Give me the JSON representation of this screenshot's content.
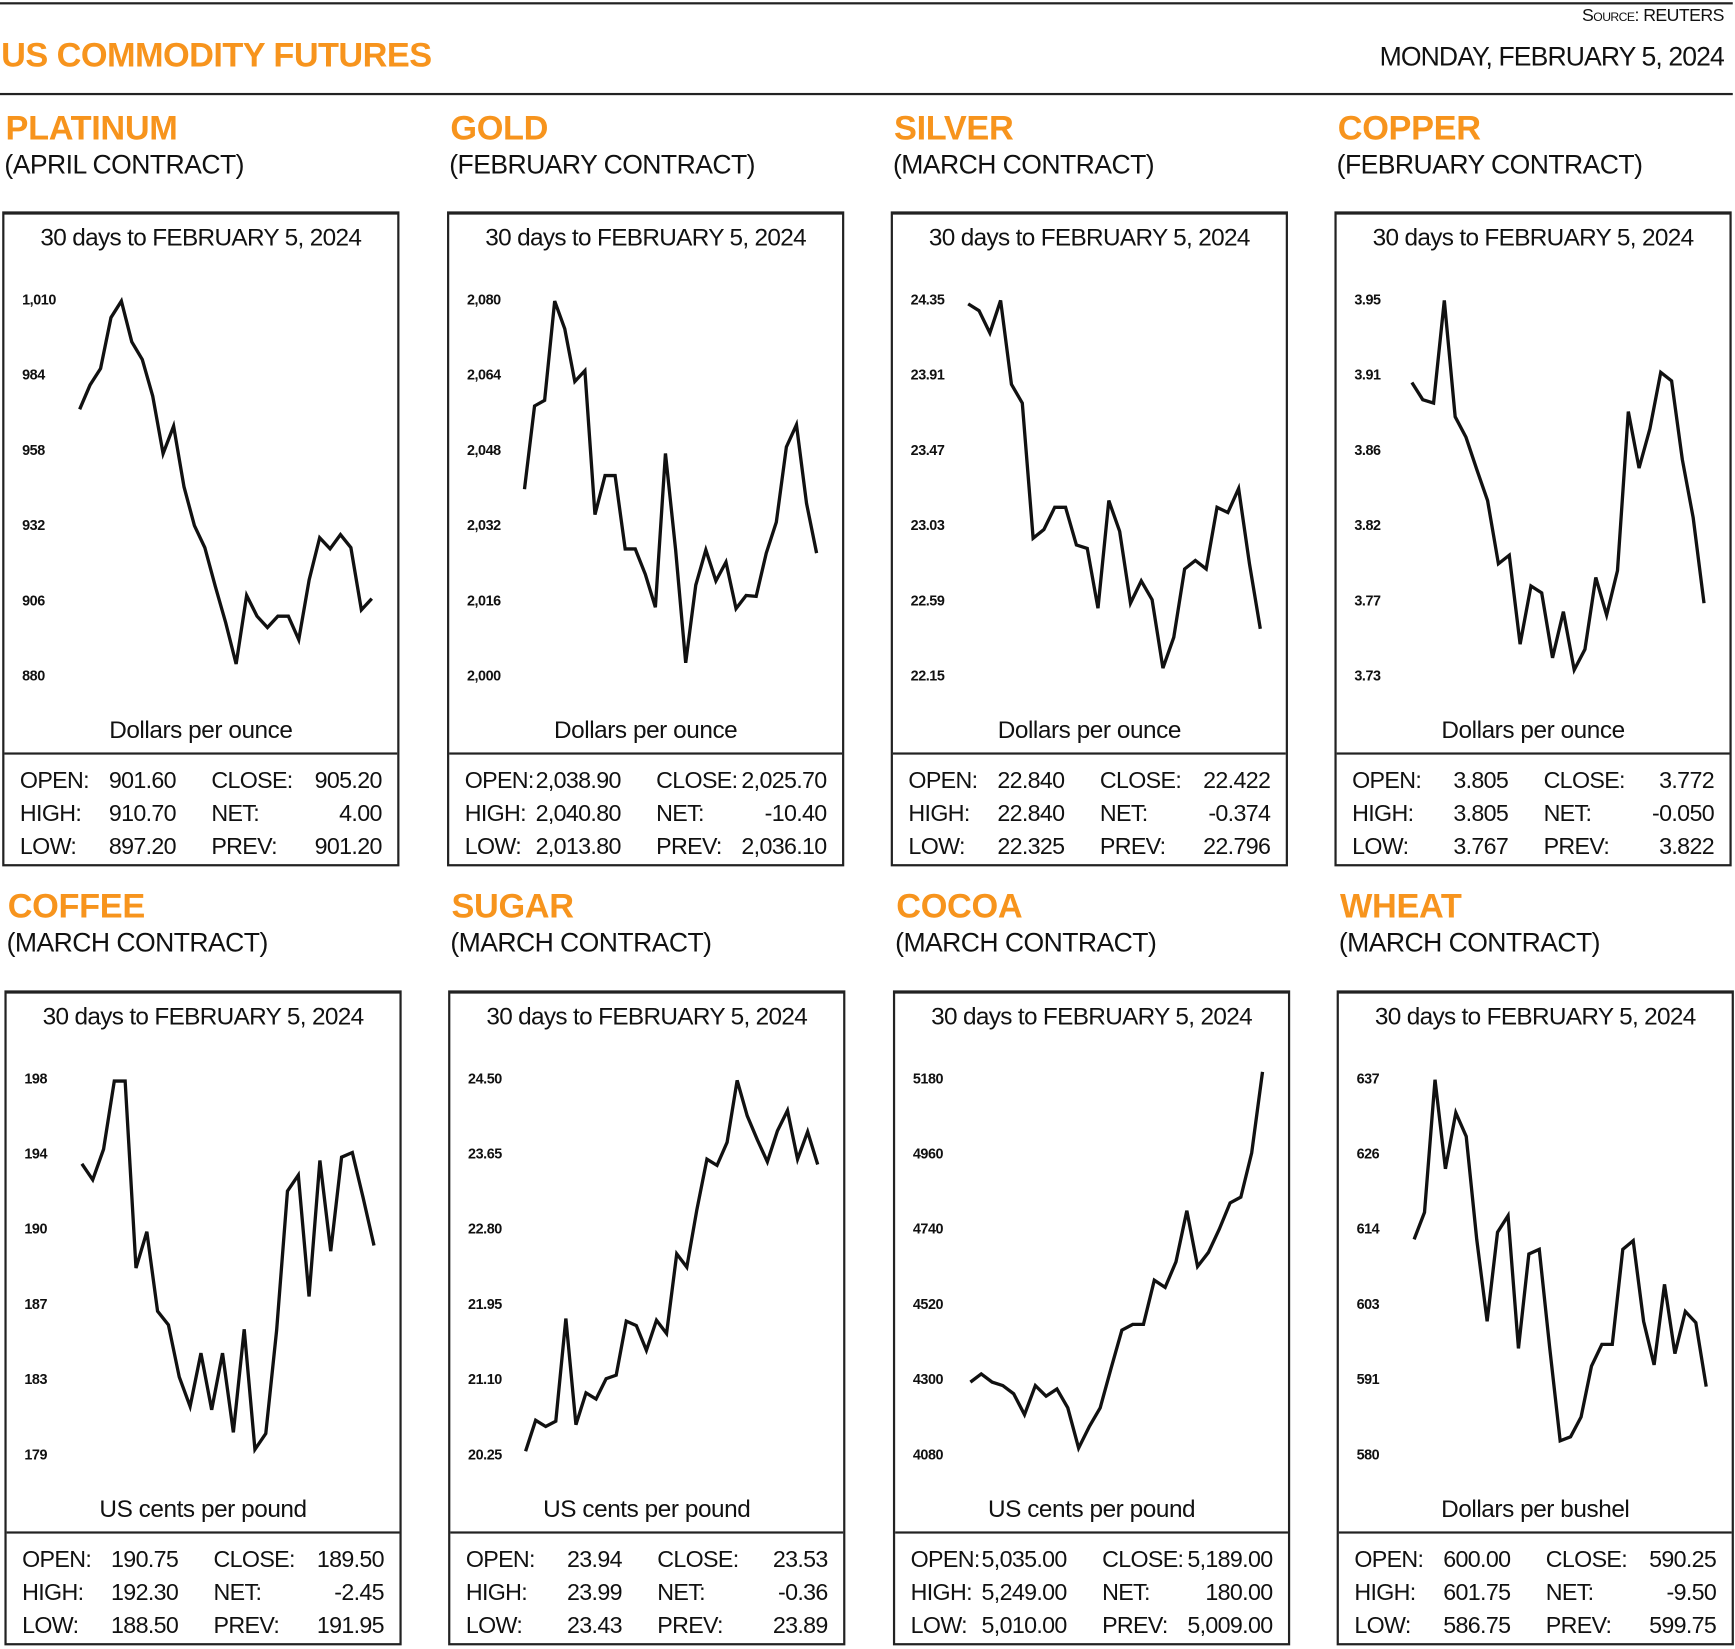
{
  "header": {
    "title": "US COMMODITY FUTURES",
    "source": "Source: REUTERS",
    "date": "MONDAY, FEBRUARY 5, 2024"
  },
  "colors": {
    "accent": "#F7941D",
    "line": "#111111"
  },
  "stat_labels": {
    "open": "OPEN:",
    "high": "HIGH:",
    "low": "LOW:",
    "close": "CLOSE:",
    "net": "NET:",
    "prev": "PREV:"
  },
  "panels": [
    {
      "name": "PLATINUM",
      "contract": "(APRIL CONTRACT)",
      "stats": {
        "open": "901.60",
        "high": "910.70",
        "low": "897.20",
        "close": "905.20",
        "net": "4.00",
        "prev": "901.20"
      }
    },
    {
      "name": "GOLD",
      "contract": "(FEBRUARY CONTRACT)",
      "stats": {
        "open": "2,038.90",
        "high": "2,040.80",
        "low": "2,013.80",
        "close": "2,025.70",
        "net": "-10.40",
        "prev": "2,036.10"
      }
    },
    {
      "name": "SILVER",
      "contract": "(MARCH CONTRACT)",
      "stats": {
        "open": "22.840",
        "high": "22.840",
        "low": "22.325",
        "close": "22.422",
        "net": "-0.374",
        "prev": "22.796"
      }
    },
    {
      "name": "COPPER",
      "contract": "(FEBRUARY CONTRACT)",
      "stats": {
        "open": "3.805",
        "high": "3.805",
        "low": "3.767",
        "close": "3.772",
        "net": "-0.050",
        "prev": "3.822"
      }
    },
    {
      "name": "COFFEE",
      "contract": "(MARCH CONTRACT)",
      "stats": {
        "open": "190.75",
        "high": "192.30",
        "low": "188.50",
        "close": "189.50",
        "net": "-2.45",
        "prev": "191.95"
      }
    },
    {
      "name": "SUGAR",
      "contract": "(MARCH CONTRACT)",
      "stats": {
        "open": "23.94",
        "high": "23.99",
        "low": "23.43",
        "close": "23.53",
        "net": "-0.36",
        "prev": "23.89"
      }
    },
    {
      "name": "COCOA",
      "contract": "(MARCH CONTRACT)",
      "stats": {
        "open": "5,035.00",
        "high": "5,249.00",
        "low": "5,010.00",
        "close": "5,189.00",
        "net": "180.00",
        "prev": "5,009.00"
      }
    },
    {
      "name": "WHEAT",
      "contract": "(MARCH CONTRACT)",
      "stats": {
        "open": "600.00",
        "high": "601.75",
        "low": "586.75",
        "close": "590.25",
        "net": "-9.50",
        "prev": "599.75"
      }
    }
  ],
  "chart_data": [
    {
      "type": "line",
      "title": "30 days to FEBRUARY 5, 2024",
      "ylabel": "Dollars per ounce",
      "ylim": [
        880,
        1010
      ],
      "yticks": [
        "1,010",
        "984",
        "958",
        "932",
        "906",
        "880"
      ],
      "grid": false,
      "values": [
        971.8,
        980.2,
        985.9,
        1003.5,
        1009.2,
        995.1,
        989.0,
        976.4,
        956.5,
        966.0,
        945.0,
        931.6,
        924.0,
        910.6,
        898.0,
        883.8,
        907.5,
        900.3,
        896.4,
        900.3,
        900.3,
        892.2,
        912.9,
        927.4,
        923.6,
        928.5,
        924.0,
        902.5,
        906.4
      ]
    },
    {
      "type": "line",
      "title": "30 days to FEBRUARY 5, 2024",
      "ylabel": "Dollars per ounce",
      "ylim": [
        2000,
        2080
      ],
      "yticks": [
        "2,080",
        "2,064",
        "2,048",
        "2,032",
        "2,016",
        "2,000"
      ],
      "grid": false,
      "values": [
        2039.5,
        2057.2,
        2058.4,
        2079.5,
        2073.6,
        2062.4,
        2064.7,
        2034.1,
        2042.4,
        2042.4,
        2026.8,
        2026.8,
        2021.4,
        2014.4,
        2047.1,
        2026.6,
        2002.6,
        2019.1,
        2026.6,
        2020.0,
        2024.0,
        2014.1,
        2016.9,
        2016.7,
        2025.9,
        2032.5,
        2048.5,
        2053.2,
        2036.5,
        2025.9
      ]
    },
    {
      "type": "line",
      "title": "30 days to FEBRUARY 5, 2024",
      "ylabel": "Dollars per ounce",
      "ylim": [
        22.15,
        24.35
      ],
      "yticks": [
        "24.35",
        "23.91",
        "23.47",
        "23.03",
        "22.59",
        "22.15"
      ],
      "grid": false,
      "values": [
        24.32,
        24.28,
        24.15,
        24.34,
        23.85,
        23.74,
        22.95,
        23.0,
        23.13,
        23.13,
        22.91,
        22.89,
        22.54,
        23.17,
        22.99,
        22.57,
        22.7,
        22.59,
        22.19,
        22.37,
        22.77,
        22.82,
        22.77,
        23.13,
        23.1,
        23.24,
        22.8,
        22.42
      ]
    },
    {
      "type": "line",
      "title": "30 days to FEBRUARY 5, 2024",
      "ylabel": "Dollars per ounce",
      "ylim": [
        3.73,
        3.95
      ],
      "yticks": [
        "3.95",
        "3.91",
        "3.86",
        "3.82",
        "3.77",
        "3.73"
      ],
      "grid": false,
      "values": [
        3.901,
        3.891,
        3.889,
        3.949,
        3.881,
        3.869,
        3.85,
        3.832,
        3.795,
        3.8,
        3.748,
        3.782,
        3.778,
        3.74,
        3.767,
        3.733,
        3.745,
        3.787,
        3.765,
        3.791,
        3.884,
        3.851,
        3.874,
        3.907,
        3.902,
        3.856,
        3.822,
        3.772
      ]
    },
    {
      "type": "line",
      "title": "30 days to FEBRUARY 5, 2024",
      "ylabel": "US cents per pound",
      "ylim": [
        179,
        198
      ],
      "yticks": [
        "198",
        "194",
        "190",
        "187",
        "183",
        "179"
      ],
      "grid": false,
      "values": [
        193.65,
        192.85,
        194.39,
        197.83,
        197.83,
        188.39,
        190.22,
        186.21,
        185.52,
        182.89,
        181.4,
        184.09,
        181.23,
        184.09,
        180.09,
        185.3,
        179.23,
        180.03,
        185.24,
        192.28,
        193.08,
        186.95,
        193.82,
        189.24,
        193.99,
        194.22,
        191.93,
        189.53
      ]
    },
    {
      "type": "line",
      "title": "30 days to FEBRUARY 5, 2024",
      "ylabel": "US cents per pound",
      "ylim": [
        20.25,
        24.5
      ],
      "yticks": [
        "24.50",
        "23.65",
        "22.80",
        "21.95",
        "21.10",
        "20.25"
      ],
      "grid": false,
      "values": [
        20.28,
        20.63,
        20.56,
        20.62,
        21.78,
        20.58,
        20.94,
        20.87,
        21.1,
        21.14,
        21.75,
        21.7,
        21.42,
        21.76,
        21.61,
        22.51,
        22.36,
        23.01,
        23.58,
        23.51,
        23.77,
        24.47,
        24.07,
        23.8,
        23.55,
        23.9,
        24.13,
        23.58,
        23.89,
        23.52
      ]
    },
    {
      "type": "line",
      "title": "30 days to FEBRUARY 5, 2024",
      "ylabel": "US cents per pound",
      "ylim": [
        4080,
        5180
      ],
      "yticks": [
        "5180",
        "4960",
        "4740",
        "4520",
        "4300",
        "4080"
      ],
      "grid": false,
      "values": [
        4290,
        4314,
        4290,
        4280,
        4256,
        4195,
        4280,
        4249,
        4270,
        4215,
        4097,
        4161,
        4215,
        4330,
        4442,
        4459,
        4459,
        4588,
        4567,
        4642,
        4791,
        4628,
        4669,
        4737,
        4814,
        4831,
        4960,
        5197
      ]
    },
    {
      "type": "line",
      "title": "30 days to FEBRUARY 5, 2024",
      "ylabel": "Dollars per bushel",
      "ylim": [
        580,
        637
      ],
      "yticks": [
        "637",
        "626",
        "614",
        "603",
        "591",
        "580"
      ],
      "grid": false,
      "values": [
        612.5,
        616.6,
        636.7,
        623.2,
        631.7,
        628.1,
        612.5,
        600.1,
        613.6,
        616.1,
        596.0,
        610.3,
        611.0,
        596.0,
        582.0,
        582.6,
        585.6,
        593.3,
        596.6,
        596.6,
        611.0,
        612.3,
        600.1,
        593.5,
        605.7,
        595.2,
        601.6,
        599.9,
        590.2
      ]
    }
  ]
}
